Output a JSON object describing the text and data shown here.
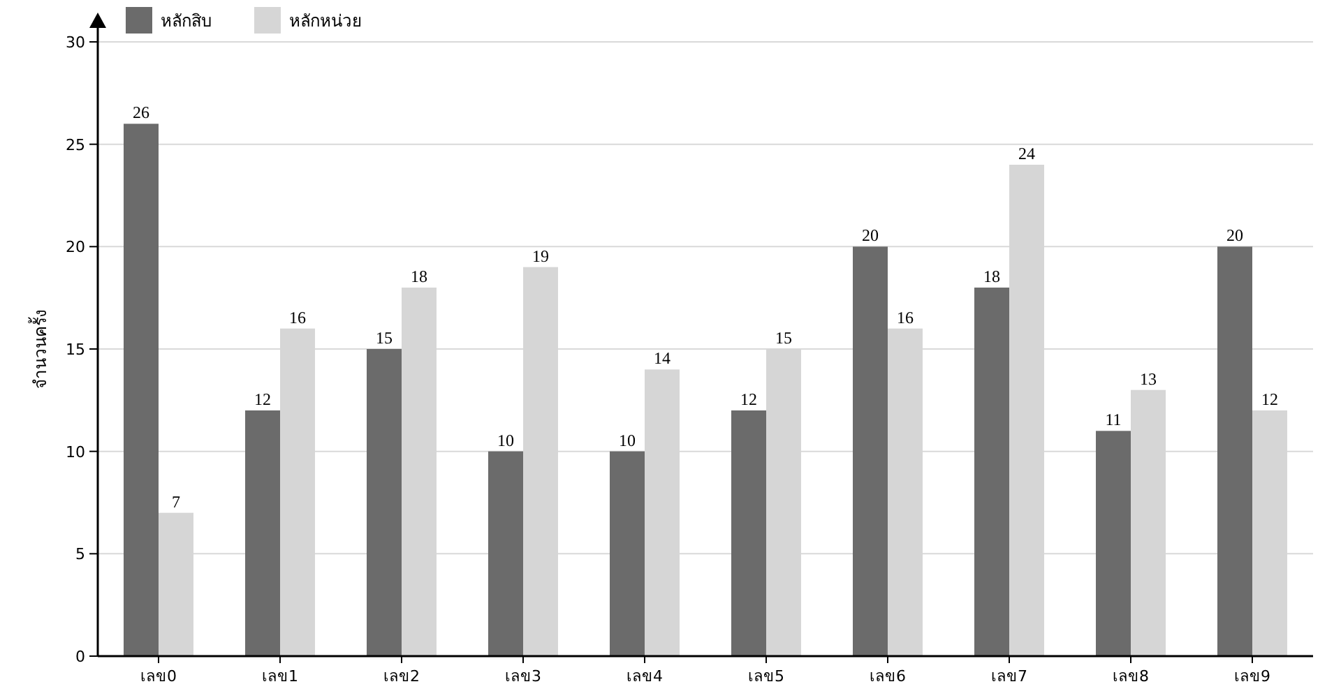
{
  "chart_data": {
    "type": "bar",
    "ylabel": "จำนวนครั้ง",
    "categories": [
      "เลข0",
      "เลข1",
      "เลข2",
      "เลข3",
      "เลข4",
      "เลข5",
      "เลข6",
      "เลข7",
      "เลข8",
      "เลข9"
    ],
    "series": [
      {
        "name": "หลักสิบ",
        "color": "#6b6b6b",
        "values": [
          26,
          12,
          15,
          10,
          10,
          12,
          20,
          18,
          11,
          20
        ]
      },
      {
        "name": "หลักหน่วย",
        "color": "#d6d6d6",
        "values": [
          7,
          16,
          18,
          19,
          14,
          15,
          16,
          24,
          13,
          12
        ]
      }
    ],
    "ylim": [
      0,
      30
    ],
    "yticks": [
      0,
      5,
      10,
      15,
      20,
      25,
      30
    ],
    "grid": "y",
    "legend": "top left",
    "data_labels": true
  }
}
